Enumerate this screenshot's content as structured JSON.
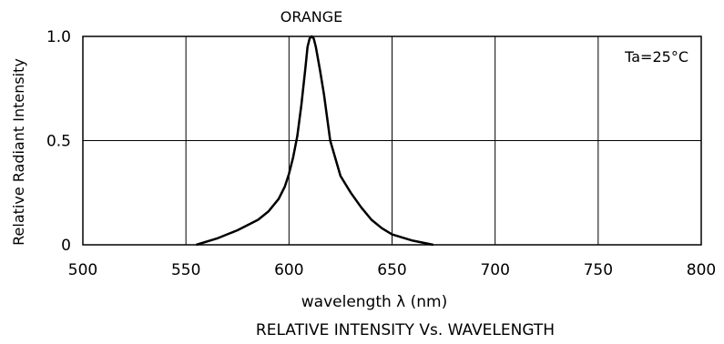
{
  "chart_data": {
    "type": "line",
    "title": "RELATIVE INTENSITY Vs. WAVELENGTH",
    "series_label": "ORANGE",
    "xlabel": "wavelength λ (nm)",
    "ylabel": "Relative Radiant Intensity",
    "annotation": "Ta=25°C",
    "xlim": [
      500,
      800
    ],
    "ylim": [
      0,
      1.0
    ],
    "x_ticks": [
      500,
      550,
      600,
      650,
      700,
      750,
      800
    ],
    "x_tick_labels": [
      "500",
      "550",
      "600",
      "650",
      "700",
      "750",
      "800"
    ],
    "y_ticks": [
      0,
      0.5,
      1.0
    ],
    "y_tick_labels": [
      "0",
      "0.5",
      "1.0"
    ],
    "grid": true,
    "series": [
      {
        "x": [
          555,
          565,
          575,
          585,
          590,
          595,
          598,
          600,
          602,
          604,
          606,
          608,
          609,
          610,
          611,
          612,
          613,
          615,
          617,
          620,
          625,
          630,
          635,
          640,
          645,
          650,
          660,
          670
        ],
        "y": [
          0.0,
          0.03,
          0.07,
          0.12,
          0.16,
          0.22,
          0.28,
          0.34,
          0.42,
          0.52,
          0.67,
          0.85,
          0.95,
          0.99,
          1.0,
          0.99,
          0.95,
          0.84,
          0.72,
          0.5,
          0.33,
          0.25,
          0.18,
          0.12,
          0.08,
          0.05,
          0.02,
          0.0
        ]
      }
    ]
  }
}
